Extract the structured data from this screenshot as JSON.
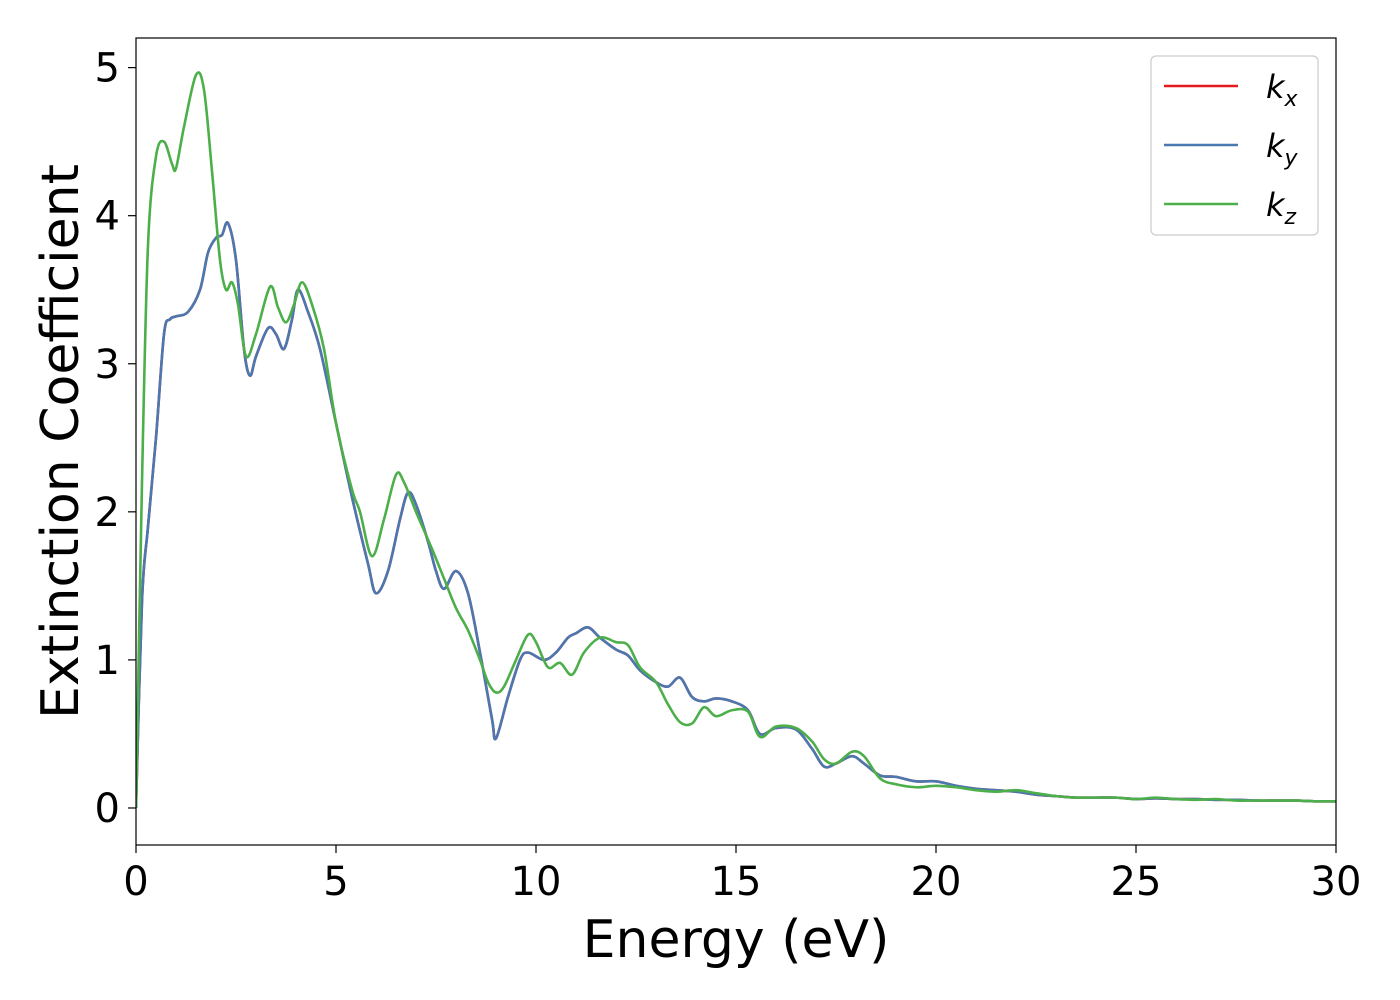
{
  "chart_data": {
    "type": "line",
    "xlabel": "Energy (eV)",
    "ylabel": "Extinction Coefficient",
    "xlim": [
      0,
      30
    ],
    "ylim": [
      -0.25,
      5.2
    ],
    "xticks": [
      "0",
      "5",
      "10",
      "15",
      "20",
      "25",
      "30"
    ],
    "yticks": [
      "0",
      "1",
      "2",
      "3",
      "4",
      "5"
    ],
    "legend_position": "top-right",
    "grid": false,
    "series": [
      {
        "name": "k",
        "subscript": "x",
        "color": "#e41a1c",
        "points": [
          [
            0,
            0
          ],
          [
            0.15,
            1.4
          ],
          [
            0.3,
            1.9
          ],
          [
            0.5,
            2.5
          ],
          [
            0.7,
            3.2
          ],
          [
            0.85,
            3.3
          ],
          [
            1.0,
            3.32
          ],
          [
            1.3,
            3.35
          ],
          [
            1.6,
            3.5
          ],
          [
            1.8,
            3.75
          ],
          [
            2.0,
            3.85
          ],
          [
            2.15,
            3.87
          ],
          [
            2.3,
            3.95
          ],
          [
            2.5,
            3.7
          ],
          [
            2.7,
            3.1
          ],
          [
            2.85,
            2.92
          ],
          [
            3.0,
            3.05
          ],
          [
            3.3,
            3.24
          ],
          [
            3.5,
            3.2
          ],
          [
            3.7,
            3.1
          ],
          [
            3.9,
            3.3
          ],
          [
            4.05,
            3.5
          ],
          [
            4.3,
            3.35
          ],
          [
            4.6,
            3.1
          ],
          [
            5.0,
            2.6
          ],
          [
            5.4,
            2.1
          ],
          [
            5.8,
            1.65
          ],
          [
            6.0,
            1.45
          ],
          [
            6.3,
            1.6
          ],
          [
            6.6,
            1.95
          ],
          [
            6.8,
            2.13
          ],
          [
            7.0,
            2.05
          ],
          [
            7.3,
            1.8
          ],
          [
            7.5,
            1.6
          ],
          [
            7.7,
            1.48
          ],
          [
            8.0,
            1.6
          ],
          [
            8.3,
            1.45
          ],
          [
            8.6,
            1.05
          ],
          [
            8.9,
            0.6
          ],
          [
            9.0,
            0.47
          ],
          [
            9.3,
            0.75
          ],
          [
            9.6,
            1.0
          ],
          [
            9.8,
            1.05
          ],
          [
            10.2,
            1.0
          ],
          [
            10.5,
            1.05
          ],
          [
            10.8,
            1.15
          ],
          [
            11.0,
            1.18
          ],
          [
            11.3,
            1.22
          ],
          [
            11.6,
            1.15
          ],
          [
            12.0,
            1.07
          ],
          [
            12.3,
            1.03
          ],
          [
            12.6,
            0.93
          ],
          [
            13.0,
            0.85
          ],
          [
            13.3,
            0.82
          ],
          [
            13.6,
            0.88
          ],
          [
            13.9,
            0.75
          ],
          [
            14.2,
            0.72
          ],
          [
            14.5,
            0.74
          ],
          [
            14.9,
            0.72
          ],
          [
            15.3,
            0.66
          ],
          [
            15.6,
            0.5
          ],
          [
            16.0,
            0.54
          ],
          [
            16.5,
            0.53
          ],
          [
            16.9,
            0.4
          ],
          [
            17.2,
            0.28
          ],
          [
            17.5,
            0.3
          ],
          [
            17.9,
            0.35
          ],
          [
            18.2,
            0.3
          ],
          [
            18.6,
            0.22
          ],
          [
            19.0,
            0.21
          ],
          [
            19.5,
            0.18
          ],
          [
            20.0,
            0.18
          ],
          [
            20.5,
            0.15
          ],
          [
            21.0,
            0.13
          ],
          [
            21.5,
            0.12
          ],
          [
            22.0,
            0.11
          ],
          [
            22.5,
            0.09
          ],
          [
            23.0,
            0.08
          ],
          [
            23.5,
            0.07
          ],
          [
            24.0,
            0.07
          ],
          [
            24.5,
            0.07
          ],
          [
            25.0,
            0.06
          ],
          [
            25.5,
            0.065
          ],
          [
            26.0,
            0.06
          ],
          [
            26.5,
            0.06
          ],
          [
            27.0,
            0.055
          ],
          [
            27.5,
            0.055
          ],
          [
            28.0,
            0.05
          ],
          [
            28.5,
            0.05
          ],
          [
            29.0,
            0.05
          ],
          [
            29.5,
            0.045
          ],
          [
            30.0,
            0.045
          ]
        ]
      },
      {
        "name": "k",
        "subscript": "y",
        "color": "#4a78b0",
        "points": [
          [
            0,
            0
          ],
          [
            0.15,
            1.4
          ],
          [
            0.3,
            1.9
          ],
          [
            0.5,
            2.5
          ],
          [
            0.7,
            3.2
          ],
          [
            0.85,
            3.3
          ],
          [
            1.0,
            3.32
          ],
          [
            1.3,
            3.35
          ],
          [
            1.6,
            3.5
          ],
          [
            1.8,
            3.75
          ],
          [
            2.0,
            3.85
          ],
          [
            2.15,
            3.87
          ],
          [
            2.3,
            3.95
          ],
          [
            2.5,
            3.7
          ],
          [
            2.7,
            3.1
          ],
          [
            2.85,
            2.92
          ],
          [
            3.0,
            3.05
          ],
          [
            3.3,
            3.24
          ],
          [
            3.5,
            3.2
          ],
          [
            3.7,
            3.1
          ],
          [
            3.9,
            3.3
          ],
          [
            4.05,
            3.5
          ],
          [
            4.3,
            3.35
          ],
          [
            4.6,
            3.1
          ],
          [
            5.0,
            2.6
          ],
          [
            5.4,
            2.1
          ],
          [
            5.8,
            1.65
          ],
          [
            6.0,
            1.45
          ],
          [
            6.3,
            1.6
          ],
          [
            6.6,
            1.95
          ],
          [
            6.8,
            2.13
          ],
          [
            7.0,
            2.05
          ],
          [
            7.3,
            1.8
          ],
          [
            7.5,
            1.6
          ],
          [
            7.7,
            1.48
          ],
          [
            8.0,
            1.6
          ],
          [
            8.3,
            1.45
          ],
          [
            8.6,
            1.05
          ],
          [
            8.9,
            0.6
          ],
          [
            9.0,
            0.47
          ],
          [
            9.3,
            0.75
          ],
          [
            9.6,
            1.0
          ],
          [
            9.8,
            1.05
          ],
          [
            10.2,
            1.0
          ],
          [
            10.5,
            1.05
          ],
          [
            10.8,
            1.15
          ],
          [
            11.0,
            1.18
          ],
          [
            11.3,
            1.22
          ],
          [
            11.6,
            1.15
          ],
          [
            12.0,
            1.07
          ],
          [
            12.3,
            1.03
          ],
          [
            12.6,
            0.93
          ],
          [
            13.0,
            0.85
          ],
          [
            13.3,
            0.82
          ],
          [
            13.6,
            0.88
          ],
          [
            13.9,
            0.75
          ],
          [
            14.2,
            0.72
          ],
          [
            14.5,
            0.74
          ],
          [
            14.9,
            0.72
          ],
          [
            15.3,
            0.66
          ],
          [
            15.6,
            0.5
          ],
          [
            16.0,
            0.54
          ],
          [
            16.5,
            0.53
          ],
          [
            16.9,
            0.4
          ],
          [
            17.2,
            0.28
          ],
          [
            17.5,
            0.3
          ],
          [
            17.9,
            0.35
          ],
          [
            18.2,
            0.3
          ],
          [
            18.6,
            0.22
          ],
          [
            19.0,
            0.21
          ],
          [
            19.5,
            0.18
          ],
          [
            20.0,
            0.18
          ],
          [
            20.5,
            0.15
          ],
          [
            21.0,
            0.13
          ],
          [
            21.5,
            0.12
          ],
          [
            22.0,
            0.11
          ],
          [
            22.5,
            0.09
          ],
          [
            23.0,
            0.08
          ],
          [
            23.5,
            0.07
          ],
          [
            24.0,
            0.07
          ],
          [
            24.5,
            0.07
          ],
          [
            25.0,
            0.06
          ],
          [
            25.5,
            0.065
          ],
          [
            26.0,
            0.06
          ],
          [
            26.5,
            0.06
          ],
          [
            27.0,
            0.055
          ],
          [
            27.5,
            0.055
          ],
          [
            28.0,
            0.05
          ],
          [
            28.5,
            0.05
          ],
          [
            29.0,
            0.05
          ],
          [
            29.5,
            0.045
          ],
          [
            30.0,
            0.045
          ]
        ]
      },
      {
        "name": "k",
        "subscript": "z",
        "color": "#4daf4a",
        "points": [
          [
            0,
            0
          ],
          [
            0.15,
            2.2
          ],
          [
            0.3,
            3.8
          ],
          [
            0.5,
            4.4
          ],
          [
            0.7,
            4.5
          ],
          [
            0.9,
            4.35
          ],
          [
            1.0,
            4.32
          ],
          [
            1.2,
            4.6
          ],
          [
            1.5,
            4.95
          ],
          [
            1.7,
            4.85
          ],
          [
            1.9,
            4.3
          ],
          [
            2.1,
            3.7
          ],
          [
            2.25,
            3.5
          ],
          [
            2.4,
            3.55
          ],
          [
            2.55,
            3.4
          ],
          [
            2.75,
            3.05
          ],
          [
            3.0,
            3.2
          ],
          [
            3.35,
            3.52
          ],
          [
            3.55,
            3.38
          ],
          [
            3.75,
            3.28
          ],
          [
            3.95,
            3.4
          ],
          [
            4.15,
            3.55
          ],
          [
            4.4,
            3.4
          ],
          [
            4.7,
            3.1
          ],
          [
            5.0,
            2.6
          ],
          [
            5.4,
            2.15
          ],
          [
            5.6,
            2.0
          ],
          [
            5.9,
            1.7
          ],
          [
            6.2,
            1.95
          ],
          [
            6.5,
            2.25
          ],
          [
            6.7,
            2.2
          ],
          [
            7.0,
            2.0
          ],
          [
            7.4,
            1.75
          ],
          [
            7.7,
            1.55
          ],
          [
            8.0,
            1.35
          ],
          [
            8.3,
            1.2
          ],
          [
            8.6,
            1.0
          ],
          [
            8.8,
            0.85
          ],
          [
            9.0,
            0.78
          ],
          [
            9.2,
            0.82
          ],
          [
            9.5,
            1.0
          ],
          [
            9.8,
            1.17
          ],
          [
            10.0,
            1.12
          ],
          [
            10.3,
            0.95
          ],
          [
            10.6,
            0.98
          ],
          [
            10.9,
            0.9
          ],
          [
            11.2,
            1.05
          ],
          [
            11.6,
            1.15
          ],
          [
            12.0,
            1.12
          ],
          [
            12.3,
            1.1
          ],
          [
            12.6,
            0.95
          ],
          [
            13.0,
            0.85
          ],
          [
            13.3,
            0.7
          ],
          [
            13.6,
            0.58
          ],
          [
            13.9,
            0.57
          ],
          [
            14.2,
            0.68
          ],
          [
            14.5,
            0.62
          ],
          [
            14.9,
            0.66
          ],
          [
            15.3,
            0.65
          ],
          [
            15.6,
            0.48
          ],
          [
            16.0,
            0.55
          ],
          [
            16.5,
            0.54
          ],
          [
            16.9,
            0.45
          ],
          [
            17.2,
            0.33
          ],
          [
            17.5,
            0.3
          ],
          [
            17.9,
            0.38
          ],
          [
            18.2,
            0.35
          ],
          [
            18.6,
            0.2
          ],
          [
            19.0,
            0.16
          ],
          [
            19.5,
            0.14
          ],
          [
            20.0,
            0.15
          ],
          [
            20.5,
            0.14
          ],
          [
            21.0,
            0.12
          ],
          [
            21.5,
            0.11
          ],
          [
            22.0,
            0.12
          ],
          [
            22.5,
            0.1
          ],
          [
            23.0,
            0.08
          ],
          [
            23.5,
            0.07
          ],
          [
            24.0,
            0.07
          ],
          [
            24.5,
            0.07
          ],
          [
            25.0,
            0.06
          ],
          [
            25.5,
            0.07
          ],
          [
            26.0,
            0.06
          ],
          [
            26.5,
            0.055
          ],
          [
            27.0,
            0.06
          ],
          [
            27.5,
            0.05
          ],
          [
            28.0,
            0.05
          ],
          [
            28.5,
            0.05
          ],
          [
            29.0,
            0.05
          ],
          [
            29.5,
            0.045
          ],
          [
            30.0,
            0.045
          ]
        ]
      }
    ]
  }
}
